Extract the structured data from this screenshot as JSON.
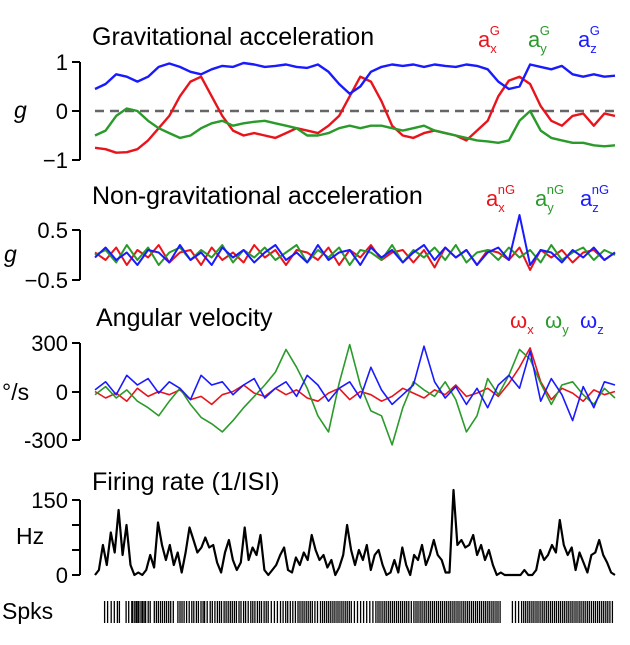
{
  "colors": {
    "x": "#e8141c",
    "y": "#2a9a2a",
    "z": "#1a1aff",
    "rate": "#000000",
    "zero_line": "#666666"
  },
  "chart_data": [
    {
      "type": "line",
      "title": "Gravitational acceleration",
      "ylabel": "g",
      "ylim": [
        -1,
        1
      ],
      "yticks": [
        "1",
        "0",
        "−1"
      ],
      "zero_line": "dashed",
      "legend": [
        {
          "sym": "a",
          "sub": "x",
          "sup": "G"
        },
        {
          "sym": "a",
          "sub": "y",
          "sup": "G"
        },
        {
          "sym": "a",
          "sub": "z",
          "sup": "G"
        }
      ],
      "series": [
        {
          "axis": "x",
          "values": [
            -0.75,
            -0.78,
            -0.85,
            -0.84,
            -0.78,
            -0.6,
            -0.35,
            -0.1,
            0.3,
            0.6,
            0.7,
            0.3,
            -0.1,
            -0.4,
            -0.5,
            -0.45,
            -0.5,
            -0.55,
            -0.45,
            -0.35,
            -0.4,
            -0.45,
            -0.3,
            -0.1,
            0.3,
            0.7,
            0.6,
            0.2,
            -0.3,
            -0.5,
            -0.55,
            -0.45,
            -0.4,
            -0.45,
            -0.5,
            -0.6,
            -0.4,
            -0.2,
            0.3,
            0.62,
            0.7,
            0.55,
            0.1,
            -0.2,
            -0.3,
            -0.1,
            -0.05,
            -0.3,
            -0.05,
            -0.1
          ]
        },
        {
          "axis": "y",
          "values": [
            -0.5,
            -0.4,
            -0.1,
            0.05,
            0.0,
            -0.2,
            -0.35,
            -0.45,
            -0.55,
            -0.5,
            -0.35,
            -0.25,
            -0.2,
            -0.3,
            -0.25,
            -0.22,
            -0.2,
            -0.25,
            -0.3,
            -0.35,
            -0.5,
            -0.5,
            -0.45,
            -0.35,
            -0.3,
            -0.35,
            -0.3,
            -0.3,
            -0.35,
            -0.4,
            -0.35,
            -0.3,
            -0.4,
            -0.45,
            -0.5,
            -0.55,
            -0.6,
            -0.62,
            -0.65,
            -0.6,
            -0.2,
            0.0,
            -0.4,
            -0.55,
            -0.6,
            -0.65,
            -0.65,
            -0.7,
            -0.72,
            -0.7
          ]
        },
        {
          "axis": "z",
          "values": [
            0.45,
            0.55,
            0.75,
            0.7,
            0.6,
            0.7,
            0.9,
            0.97,
            0.9,
            0.8,
            0.75,
            0.85,
            0.92,
            0.9,
            0.98,
            0.95,
            0.9,
            0.92,
            0.95,
            0.9,
            0.88,
            0.95,
            0.8,
            0.55,
            0.35,
            0.5,
            0.8,
            0.9,
            0.95,
            0.92,
            0.95,
            0.9,
            0.95,
            0.92,
            0.9,
            0.95,
            0.92,
            0.85,
            0.6,
            0.45,
            0.5,
            0.95,
            0.9,
            0.85,
            0.92,
            0.75,
            0.7,
            0.75,
            0.7,
            0.72
          ]
        }
      ]
    },
    {
      "type": "line",
      "title": "Non-gravitational acceleration",
      "ylabel": "g",
      "ylim": [
        -0.5,
        0.5
      ],
      "yticks": [
        "0.5",
        "−0.5"
      ],
      "legend": [
        {
          "sym": "a",
          "sub": "x",
          "sup": "nG"
        },
        {
          "sym": "a",
          "sub": "y",
          "sup": "nG"
        },
        {
          "sym": "a",
          "sub": "z",
          "sup": "nG"
        }
      ],
      "series": [
        {
          "axis": "x",
          "values": [
            0.05,
            -0.1,
            0.15,
            -0.2,
            0.1,
            -0.05,
            0.2,
            -0.15,
            0.05,
            0.1,
            -0.2,
            0.15,
            -0.1,
            0.05,
            -0.15,
            0.2,
            -0.05,
            0.1,
            -0.2,
            0.1,
            0.05,
            -0.1,
            0.15,
            -0.2,
            0.1,
            -0.05,
            0.2,
            -0.1,
            0.05,
            0.1,
            -0.15,
            0.1,
            -0.25,
            0.15,
            -0.05,
            0.1,
            -0.2,
            0.1,
            0.05,
            -0.1,
            0.15,
            -0.3,
            0.1,
            -0.05,
            0.1,
            -0.15,
            0.05,
            0.1,
            -0.1,
            0.05
          ]
        },
        {
          "axis": "y",
          "values": [
            0.0,
            0.1,
            -0.15,
            0.2,
            -0.1,
            0.15,
            -0.2,
            0.05,
            0.15,
            -0.1,
            0.1,
            -0.05,
            0.2,
            -0.15,
            0.1,
            -0.05,
            0.15,
            -0.1,
            0.05,
            0.2,
            -0.15,
            0.1,
            -0.05,
            0.15,
            -0.2,
            0.1,
            0.05,
            -0.1,
            0.2,
            -0.15,
            0.1,
            -0.05,
            0.15,
            -0.1,
            0.2,
            -0.15,
            0.05,
            0.1,
            -0.1,
            0.15,
            -0.05,
            0.1,
            -0.15,
            0.2,
            -0.1,
            0.05,
            0.15,
            -0.1,
            0.1,
            0.0
          ]
        },
        {
          "axis": "z",
          "values": [
            -0.05,
            0.15,
            -0.1,
            0.05,
            -0.2,
            0.1,
            0.05,
            -0.15,
            0.2,
            -0.1,
            0.05,
            -0.2,
            0.15,
            -0.05,
            0.1,
            -0.15,
            0.05,
            0.2,
            -0.1,
            0.05,
            -0.15,
            0.2,
            -0.1,
            0.05,
            0.1,
            -0.2,
            0.15,
            -0.05,
            0.1,
            -0.15,
            0.05,
            0.2,
            -0.1,
            0.15,
            -0.05,
            0.1,
            -0.2,
            0.05,
            0.15,
            -0.1,
            0.8,
            -0.2,
            0.1,
            0.05,
            -0.15,
            0.1,
            -0.05,
            0.15,
            -0.1,
            0.05
          ]
        }
      ]
    },
    {
      "type": "line",
      "title": "Angular velocity",
      "ylabel": "°/s",
      "ylim": [
        -300,
        300
      ],
      "yticks": [
        "300",
        "0",
        "-300"
      ],
      "legend": [
        {
          "sym": "ω",
          "sub": "x"
        },
        {
          "sym": "ω",
          "sub": "y"
        },
        {
          "sym": "ω",
          "sub": "z"
        }
      ],
      "series": [
        {
          "axis": "x",
          "values": [
            0,
            -40,
            -10,
            -60,
            20,
            -30,
            0,
            -20,
            10,
            -50,
            -30,
            -80,
            -20,
            0,
            40,
            -10,
            -30,
            20,
            -20,
            10,
            -40,
            -60,
            -10,
            20,
            -50,
            0,
            -20,
            -60,
            -30,
            20,
            -10,
            -40,
            10,
            -20,
            40,
            -30,
            -10,
            20,
            -30,
            50,
            150,
            270,
            60,
            -50,
            20,
            -10,
            -60,
            10,
            -20,
            0
          ]
        },
        {
          "axis": "y",
          "values": [
            -20,
            30,
            -40,
            10,
            -60,
            -100,
            -150,
            -60,
            20,
            -80,
            -160,
            -200,
            -250,
            -180,
            -100,
            -30,
            40,
            120,
            260,
            150,
            20,
            -150,
            -250,
            50,
            290,
            40,
            -120,
            -150,
            -330,
            -100,
            60,
            10,
            -30,
            60,
            -50,
            -250,
            -150,
            80,
            -20,
            100,
            260,
            200,
            50,
            -80,
            40,
            60,
            -20,
            -80,
            20,
            -40
          ]
        },
        {
          "axis": "z",
          "values": [
            10,
            60,
            -20,
            100,
            40,
            80,
            -10,
            60,
            20,
            -50,
            100,
            40,
            60,
            -20,
            40,
            80,
            -40,
            20,
            60,
            -30,
            100,
            40,
            -60,
            20,
            60,
            -40,
            150,
            10,
            -80,
            -20,
            40,
            280,
            60,
            -40,
            30,
            -80,
            20,
            -100,
            40,
            100,
            20,
            250,
            -60,
            80,
            -20,
            -180,
            30,
            -100,
            60,
            40
          ]
        }
      ]
    },
    {
      "type": "line",
      "title": "Firing rate (1/ISI)",
      "ylabel": "Hz",
      "ylim": [
        0,
        150
      ],
      "yticks": [
        "150",
        "0"
      ],
      "series": [
        {
          "name": "rate",
          "values": [
            0,
            10,
            60,
            20,
            85,
            45,
            130,
            40,
            100,
            20,
            0,
            5,
            0,
            10,
            40,
            15,
            105,
            60,
            30,
            60,
            20,
            45,
            5,
            45,
            95,
            70,
            45,
            55,
            75,
            55,
            60,
            25,
            5,
            45,
            70,
            30,
            10,
            25,
            95,
            30,
            55,
            40,
            80,
            10,
            0,
            10,
            20,
            40,
            55,
            10,
            5,
            35,
            20,
            45,
            30,
            80,
            50,
            30,
            40,
            15,
            30,
            0,
            15,
            40,
            100,
            50,
            20,
            50,
            30,
            60,
            10,
            40,
            50,
            20,
            0,
            5,
            30,
            5,
            55,
            20,
            0,
            40,
            30,
            60,
            20,
            40,
            70,
            40,
            30,
            5,
            5,
            170,
            60,
            70,
            55,
            60,
            80,
            40,
            60,
            30,
            50,
            20,
            0,
            5,
            0,
            0,
            0,
            0,
            0,
            10,
            0,
            0,
            10,
            50,
            30,
            40,
            60,
            45,
            110,
            60,
            40,
            55,
            10,
            45,
            25,
            5,
            40,
            45,
            70,
            40,
            25,
            5,
            0
          ]
        }
      ]
    }
  ],
  "spikes": {
    "label": "Spks",
    "positions": [
      0.005,
      0.011,
      0.018,
      0.024,
      0.03,
      0.034,
      0.047,
      0.052,
      0.058,
      0.06,
      0.064,
      0.067,
      0.07,
      0.072,
      0.076,
      0.079,
      0.082,
      0.085,
      0.09,
      0.094,
      0.102,
      0.106,
      0.11,
      0.114,
      0.118,
      0.122,
      0.126,
      0.13,
      0.134,
      0.139,
      0.148,
      0.152,
      0.156,
      0.16,
      0.165,
      0.17,
      0.175,
      0.179,
      0.184,
      0.188,
      0.193,
      0.197,
      0.2,
      0.205,
      0.211,
      0.215,
      0.22,
      0.225,
      0.229,
      0.233,
      0.238,
      0.242,
      0.246,
      0.25,
      0.254,
      0.258,
      0.262,
      0.267,
      0.271,
      0.276,
      0.28,
      0.285,
      0.29,
      0.294,
      0.298,
      0.303,
      0.307,
      0.311,
      0.316,
      0.32,
      0.324,
      0.33,
      0.336,
      0.342,
      0.348,
      0.353,
      0.358,
      0.362,
      0.367,
      0.372,
      0.377,
      0.382,
      0.386,
      0.39,
      0.394,
      0.398,
      0.402,
      0.406,
      0.41,
      0.415,
      0.42,
      0.426,
      0.43,
      0.434,
      0.438,
      0.442,
      0.446,
      0.45,
      0.454,
      0.458,
      0.462,
      0.466,
      0.47,
      0.474,
      0.478,
      0.482,
      0.486,
      0.492,
      0.498,
      0.504,
      0.51,
      0.516,
      0.522,
      0.528,
      0.534,
      0.538,
      0.542,
      0.546,
      0.55,
      0.554,
      0.558,
      0.562,
      0.566,
      0.57,
      0.574,
      0.578,
      0.582,
      0.586,
      0.59,
      0.594,
      0.598,
      0.603,
      0.608,
      0.612,
      0.616,
      0.62,
      0.624,
      0.628,
      0.632,
      0.636,
      0.64,
      0.644,
      0.648,
      0.652,
      0.656,
      0.66,
      0.664,
      0.668,
      0.672,
      0.676,
      0.68,
      0.684,
      0.688,
      0.692,
      0.696,
      0.7,
      0.704,
      0.708,
      0.712,
      0.716,
      0.72,
      0.724,
      0.728,
      0.732,
      0.736,
      0.74,
      0.744,
      0.748,
      0.752,
      0.756,
      0.76,
      0.764,
      0.768,
      0.772,
      0.776,
      0.8,
      0.806,
      0.812,
      0.818,
      0.822,
      0.826,
      0.83,
      0.834,
      0.838,
      0.842,
      0.846,
      0.85,
      0.854,
      0.858,
      0.862,
      0.866,
      0.87,
      0.874,
      0.878,
      0.882,
      0.886,
      0.89,
      0.894,
      0.898,
      0.902,
      0.906,
      0.91,
      0.914,
      0.918,
      0.922,
      0.926,
      0.93,
      0.934,
      0.938,
      0.942,
      0.946,
      0.95,
      0.954,
      0.958,
      0.962,
      0.966,
      0.97,
      0.974,
      0.978,
      0.982,
      0.986,
      0.99,
      0.995
    ]
  }
}
